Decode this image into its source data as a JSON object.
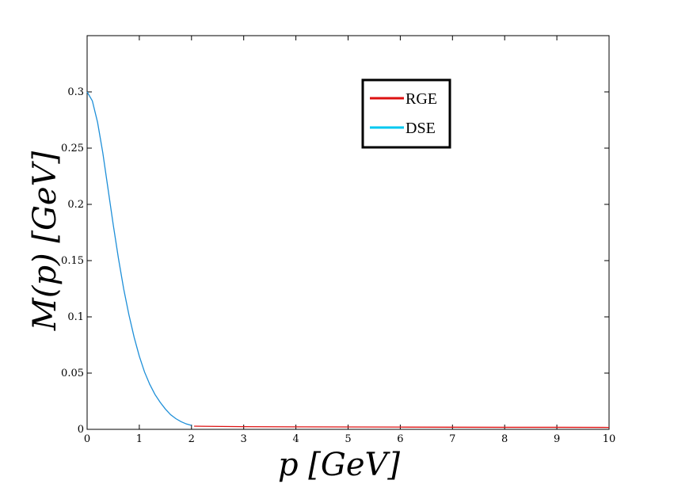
{
  "chart_data": {
    "type": "line",
    "xlabel": "p [GeV]",
    "ylabel": "M(p) [GeV]",
    "xlim": [
      0,
      10
    ],
    "ylim": [
      0,
      0.35
    ],
    "x_ticks": [
      "0",
      "1",
      "2",
      "3",
      "4",
      "5",
      "6",
      "7",
      "8",
      "9",
      "10"
    ],
    "y_ticks": [
      "0",
      "0.05",
      "0.1",
      "0.15",
      "0.2",
      "0.25",
      "0.3"
    ],
    "grid": false,
    "legend_position": "top-right",
    "series": [
      {
        "name": "RGE",
        "color": "#dd1111",
        "x": [
          2.05,
          3,
          4,
          5,
          6,
          7,
          8,
          9,
          10
        ],
        "y": [
          0.0028,
          0.0024,
          0.0022,
          0.0021,
          0.002,
          0.0019,
          0.0018,
          0.0018,
          0.0017
        ]
      },
      {
        "name": "DSE",
        "color": "#1e8fd8",
        "x": [
          0,
          0.1,
          0.2,
          0.3,
          0.4,
          0.5,
          0.6,
          0.7,
          0.8,
          0.9,
          1.0,
          1.1,
          1.2,
          1.3,
          1.4,
          1.5,
          1.6,
          1.7,
          1.8,
          1.9,
          2.0
        ],
        "y": [
          0.3,
          0.292,
          0.273,
          0.246,
          0.214,
          0.182,
          0.152,
          0.125,
          0.102,
          0.082,
          0.065,
          0.051,
          0.04,
          0.031,
          0.024,
          0.018,
          0.013,
          0.0095,
          0.0068,
          0.0048,
          0.0035
        ]
      }
    ],
    "legend_colors": [
      "#dd1111",
      "#00c8f0"
    ]
  }
}
